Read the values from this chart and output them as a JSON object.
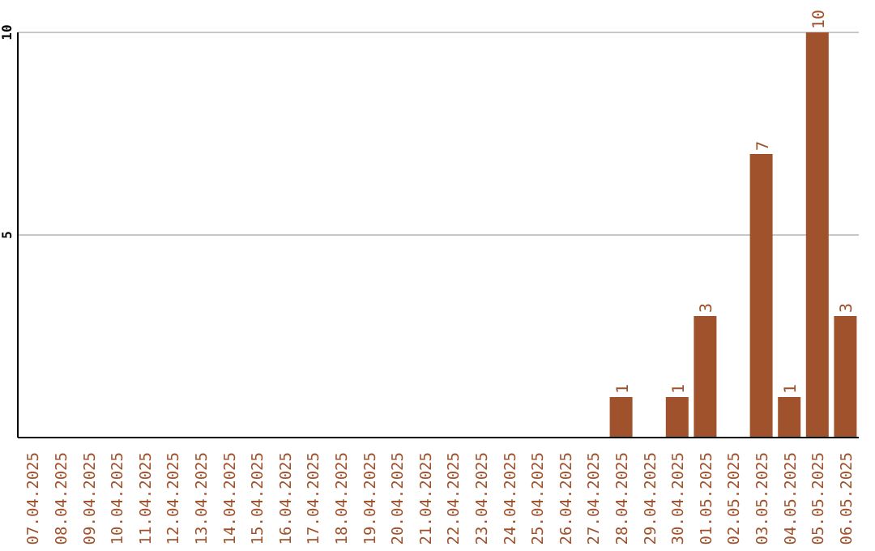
{
  "chart_data": {
    "type": "bar",
    "categories": [
      "07.04.2025",
      "08.04.2025",
      "09.04.2025",
      "10.04.2025",
      "11.04.2025",
      "12.04.2025",
      "13.04.2025",
      "14.04.2025",
      "15.04.2025",
      "16.04.2025",
      "17.04.2025",
      "18.04.2025",
      "19.04.2025",
      "20.04.2025",
      "21.04.2025",
      "22.04.2025",
      "23.04.2025",
      "24.04.2025",
      "25.04.2025",
      "26.04.2025",
      "27.04.2025",
      "28.04.2025",
      "29.04.2025",
      "30.04.2025",
      "01.05.2025",
      "02.05.2025",
      "03.05.2025",
      "04.05.2025",
      "05.05.2025",
      "06.05.2025"
    ],
    "values": [
      0,
      0,
      0,
      0,
      0,
      0,
      0,
      0,
      0,
      0,
      0,
      0,
      0,
      0,
      0,
      0,
      0,
      0,
      0,
      0,
      0,
      1,
      0,
      1,
      3,
      0,
      7,
      1,
      10,
      3
    ],
    "value_labels": [
      null,
      null,
      null,
      null,
      null,
      null,
      null,
      null,
      null,
      null,
      null,
      null,
      null,
      null,
      null,
      null,
      null,
      null,
      null,
      null,
      null,
      "1",
      null,
      "1",
      "3",
      null,
      "7",
      "1",
      "10",
      "3"
    ],
    "color": "#a0522d",
    "ylim": [
      0,
      10
    ],
    "yticks": [
      5,
      10
    ],
    "grid": "y"
  }
}
